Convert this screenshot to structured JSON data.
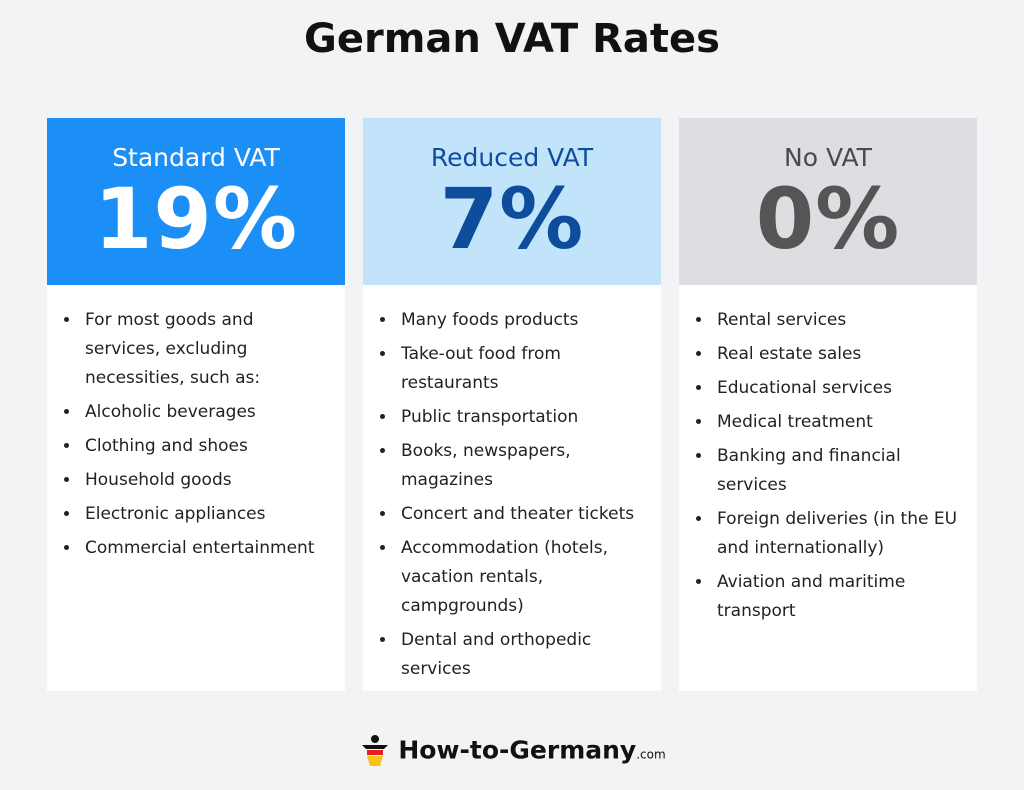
{
  "title": "German VAT Rates",
  "columns": [
    {
      "label": "Standard VAT",
      "rate": "19%",
      "items": [
        "For most goods and services, excluding necessities, such as:",
        "Alcoholic beverages",
        "Clothing and shoes",
        "Household goods",
        "Electronic appliances",
        "Commercial entertainment"
      ]
    },
    {
      "label": "Reduced VAT",
      "rate": "7%",
      "items": [
        "Many foods products",
        "Take-out food from restaurants",
        "Public transportation",
        "Books, newspapers, magazines",
        "Concert and theater tickets",
        "Accommodation (hotels, vacation rentals, campgrounds)",
        "Dental and orthopedic services"
      ]
    },
    {
      "label": "No VAT",
      "rate": "0%",
      "items": [
        "Rental services",
        "Real estate sales",
        "Educational services",
        "Medical treatment",
        "Banking and financial services",
        "Foreign deliveries (in the EU and internationally)",
        "Aviation and maritime transport"
      ]
    }
  ],
  "footer": {
    "brand": "How-to-Germany",
    "suffix": ".com"
  }
}
